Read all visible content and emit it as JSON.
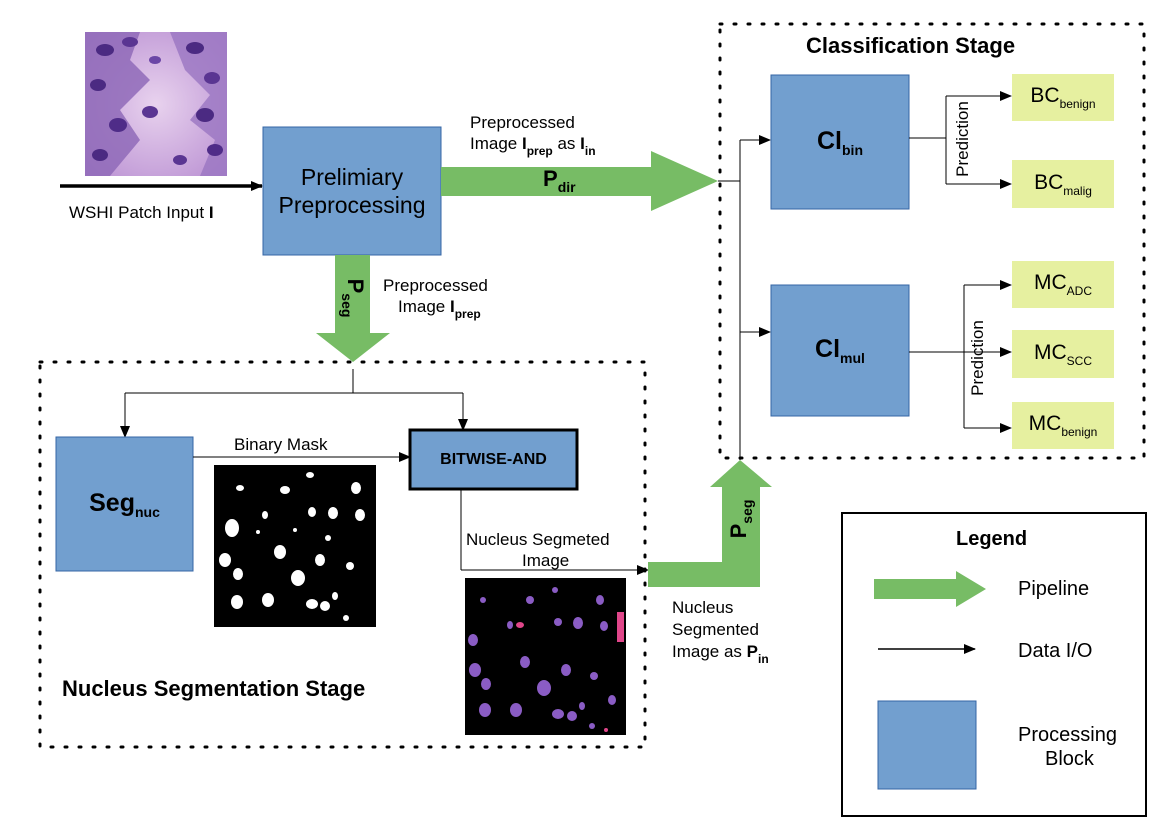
{
  "input": {
    "label": "WSHI Patch Input ",
    "var": "I"
  },
  "preprocessing": {
    "line1": "Prelimiary",
    "line2": "Preprocessing"
  },
  "p_dir": {
    "top_line1": "Preprocessed",
    "top_line2_a": "Image ",
    "top_line2_var": "I",
    "top_line2_sub": "prep",
    "top_line2_b": " as ",
    "top_line2_var2": "I",
    "top_line2_sub2": "in",
    "pipe": "P",
    "pipe_sub": "dir"
  },
  "p_seg_down": {
    "pipe": "P",
    "pipe_sub": "seg",
    "line1": "Preprocessed",
    "line2_a": "Image ",
    "line2_var": "I",
    "line2_sub": "prep"
  },
  "segmentation_stage": {
    "title": "Nucleus Segmentation Stage",
    "seg_block": "Seg",
    "seg_sub": "nuc",
    "binary_mask": "Binary Mask",
    "bitwise": "BITWISE-AND",
    "nucleus_segmeted_line1": "Nucleus Segmeted",
    "nucleus_segmeted_line2": "Image"
  },
  "p_seg_up": {
    "pipe": "P",
    "pipe_sub": "seg",
    "line1": "Nucleus",
    "line2": "Segmented",
    "line3_a": "Image as ",
    "line3_var": "P",
    "line3_sub": "in"
  },
  "classification_stage": {
    "title": "Classification Stage",
    "cl_bin": "Cl",
    "cl_bin_sub": "bin",
    "cl_mul": "Cl",
    "cl_mul_sub": "mul",
    "prediction": "Prediction",
    "outputs": [
      {
        "main": "BC",
        "sub": "benign"
      },
      {
        "main": "BC",
        "sub": "malig"
      },
      {
        "main": "MC",
        "sub": "ADC"
      },
      {
        "main": "MC",
        "sub": "SCC"
      },
      {
        "main": "MC",
        "sub": "benign"
      }
    ]
  },
  "legend": {
    "title": "Legend",
    "pipeline": "Pipeline",
    "data_io": "Data I/O",
    "processing_line1": "Processing",
    "processing_line2": "Block"
  },
  "colors": {
    "block_fill": "#729fcf",
    "block_stroke": "#3465a4",
    "pipe_green": "#77bc65",
    "output_fill": "#e6f0a0",
    "tissue_purple": "#8a5cc4",
    "tissue_pink": "#d8b8e4"
  }
}
